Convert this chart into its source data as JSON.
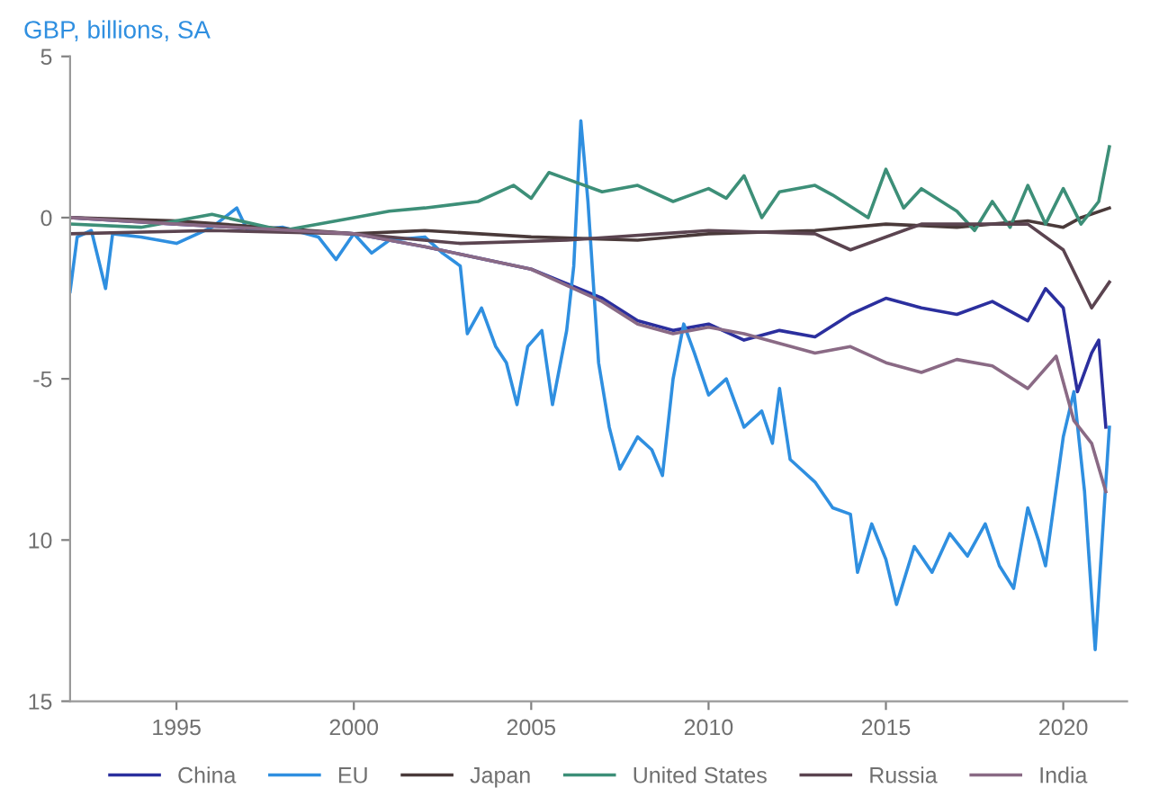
{
  "chart_data": {
    "type": "line",
    "title": "GBP, billions, SA",
    "xlim": [
      1992,
      2021.8
    ],
    "xticks": [
      1995,
      2000,
      2005,
      2010,
      2015,
      2020
    ],
    "ylim": [
      -15,
      5
    ],
    "yticks": [
      5,
      0,
      -5,
      {
        "value": -10,
        "label": "10"
      },
      {
        "value": -15,
        "label": "15"
      }
    ],
    "grid": false,
    "legend": "bottom",
    "marker": "none",
    "line_style": "solid",
    "series": [
      {
        "name": "China",
        "color": "#2b2f9e",
        "x": [
          1992,
          1995,
          2000,
          2002,
          2005,
          2007,
          2008,
          2009,
          2010,
          2011,
          2012,
          2013,
          2014,
          2015,
          2016,
          2017,
          2018,
          2019,
          2019.5,
          2020,
          2020.4,
          2020.8,
          2021.0,
          2021.2
        ],
        "values": [
          0,
          -0.2,
          -0.5,
          -0.9,
          -1.6,
          -2.5,
          -3.2,
          -3.5,
          -3.3,
          -3.8,
          -3.5,
          -3.7,
          -3.0,
          -2.5,
          -2.8,
          -3.0,
          -2.6,
          -3.2,
          -2.2,
          -2.8,
          -5.4,
          -4.2,
          -3.8,
          -6.5
        ]
      },
      {
        "name": "EU",
        "color": "#2f8fe0",
        "x": [
          1992.0,
          1992.2,
          1992.6,
          1993,
          1993.2,
          1994,
          1995,
          1996,
          1996.7,
          1997,
          1998,
          1999,
          1999.5,
          2000,
          2000.5,
          2001,
          2002,
          2002.5,
          2003,
          2003.2,
          2003.6,
          2004,
          2004.3,
          2004.6,
          2004.9,
          2005.3,
          2005.6,
          2006,
          2006.2,
          2006.4,
          2006.6,
          2006.9,
          2007.2,
          2007.5,
          2008,
          2008.4,
          2008.7,
          2009,
          2009.3,
          2009.6,
          2010,
          2010.5,
          2011,
          2011.5,
          2011.8,
          2012,
          2012.3,
          2012.6,
          2013,
          2013.5,
          2014,
          2014.2,
          2014.6,
          2015,
          2015.3,
          2015.8,
          2016.3,
          2016.8,
          2017.3,
          2017.8,
          2018.2,
          2018.6,
          2019,
          2019.3,
          2019.5,
          2020,
          2020.3,
          2020.6,
          2020.9,
          2021.2,
          2021.3
        ],
        "values": [
          -2.3,
          -0.6,
          -0.4,
          -2.2,
          -0.5,
          -0.6,
          -0.8,
          -0.3,
          0.3,
          -0.4,
          -0.3,
          -0.6,
          -1.3,
          -0.5,
          -1.1,
          -0.7,
          -0.6,
          -1.1,
          -1.5,
          -3.6,
          -2.8,
          -4.0,
          -4.5,
          -5.8,
          -4.0,
          -3.5,
          -5.8,
          -3.5,
          -1.5,
          3.0,
          0.5,
          -4.5,
          -6.5,
          -7.8,
          -6.8,
          -7.2,
          -8.0,
          -5.0,
          -3.3,
          -4.2,
          -5.5,
          -5.0,
          -6.5,
          -6.0,
          -7.0,
          -5.3,
          -7.5,
          -7.8,
          -8.2,
          -9.0,
          -9.2,
          -11.0,
          -9.5,
          -10.6,
          -12.0,
          -10.2,
          -11.0,
          -9.8,
          -10.5,
          -9.5,
          -10.8,
          -11.5,
          -9.0,
          -10.0,
          -10.8,
          -6.8,
          -5.4,
          -8.5,
          -13.4,
          -8.2,
          -6.5
        ]
      },
      {
        "name": "Japan",
        "color": "#4a3a3a",
        "x": [
          1992,
          1995,
          2000,
          2002,
          2005,
          2008,
          2010,
          2013,
          2015,
          2017,
          2019,
          2020,
          2020.5,
          2021.3
        ],
        "values": [
          0,
          -0.1,
          -0.5,
          -0.4,
          -0.6,
          -0.7,
          -0.5,
          -0.4,
          -0.2,
          -0.3,
          -0.1,
          -0.3,
          0.0,
          0.3
        ]
      },
      {
        "name": "United States",
        "color": "#3d8f78",
        "x": [
          1992,
          1994,
          1996,
          1998,
          2000,
          2001,
          2002,
          2003.5,
          2004.5,
          2005,
          2005.5,
          2006,
          2007,
          2008,
          2009,
          2010,
          2010.5,
          2011,
          2011.5,
          2012,
          2013,
          2013.5,
          2014.5,
          2015,
          2015.5,
          2016,
          2017,
          2017.5,
          2018,
          2018.5,
          2019,
          2019.5,
          2020,
          2020.5,
          2021,
          2021.3
        ],
        "values": [
          -0.2,
          -0.3,
          0.1,
          -0.4,
          0.0,
          0.2,
          0.3,
          0.5,
          1.0,
          0.6,
          1.4,
          1.2,
          0.8,
          1.0,
          0.5,
          0.9,
          0.6,
          1.3,
          0.0,
          0.8,
          1.0,
          0.7,
          0.0,
          1.5,
          0.3,
          0.9,
          0.2,
          -0.4,
          0.5,
          -0.3,
          1.0,
          -0.2,
          0.9,
          -0.2,
          0.5,
          2.2
        ]
      },
      {
        "name": "Russia",
        "color": "#5b4450",
        "x": [
          1992,
          1996,
          2000,
          2003,
          2006,
          2010,
          2013,
          2014,
          2016,
          2019,
          2020,
          2020.8,
          2021.3
        ],
        "values": [
          -0.5,
          -0.4,
          -0.5,
          -0.8,
          -0.7,
          -0.4,
          -0.5,
          -1.0,
          -0.2,
          -0.2,
          -1.0,
          -2.8,
          -2.0
        ]
      },
      {
        "name": "India",
        "color": "#8a6a85",
        "x": [
          1992,
          1995,
          2000,
          2002,
          2005,
          2007,
          2008,
          2009,
          2010,
          2011,
          2013,
          2014,
          2015,
          2016,
          2017,
          2018,
          2019,
          2019.8,
          2020.3,
          2020.8,
          2021.2
        ],
        "values": [
          0,
          -0.2,
          -0.5,
          -0.9,
          -1.6,
          -2.6,
          -3.3,
          -3.6,
          -3.4,
          -3.6,
          -4.2,
          -4.0,
          -4.5,
          -4.8,
          -4.4,
          -4.6,
          -5.3,
          -4.3,
          -6.3,
          -7.0,
          -8.5
        ]
      }
    ]
  }
}
